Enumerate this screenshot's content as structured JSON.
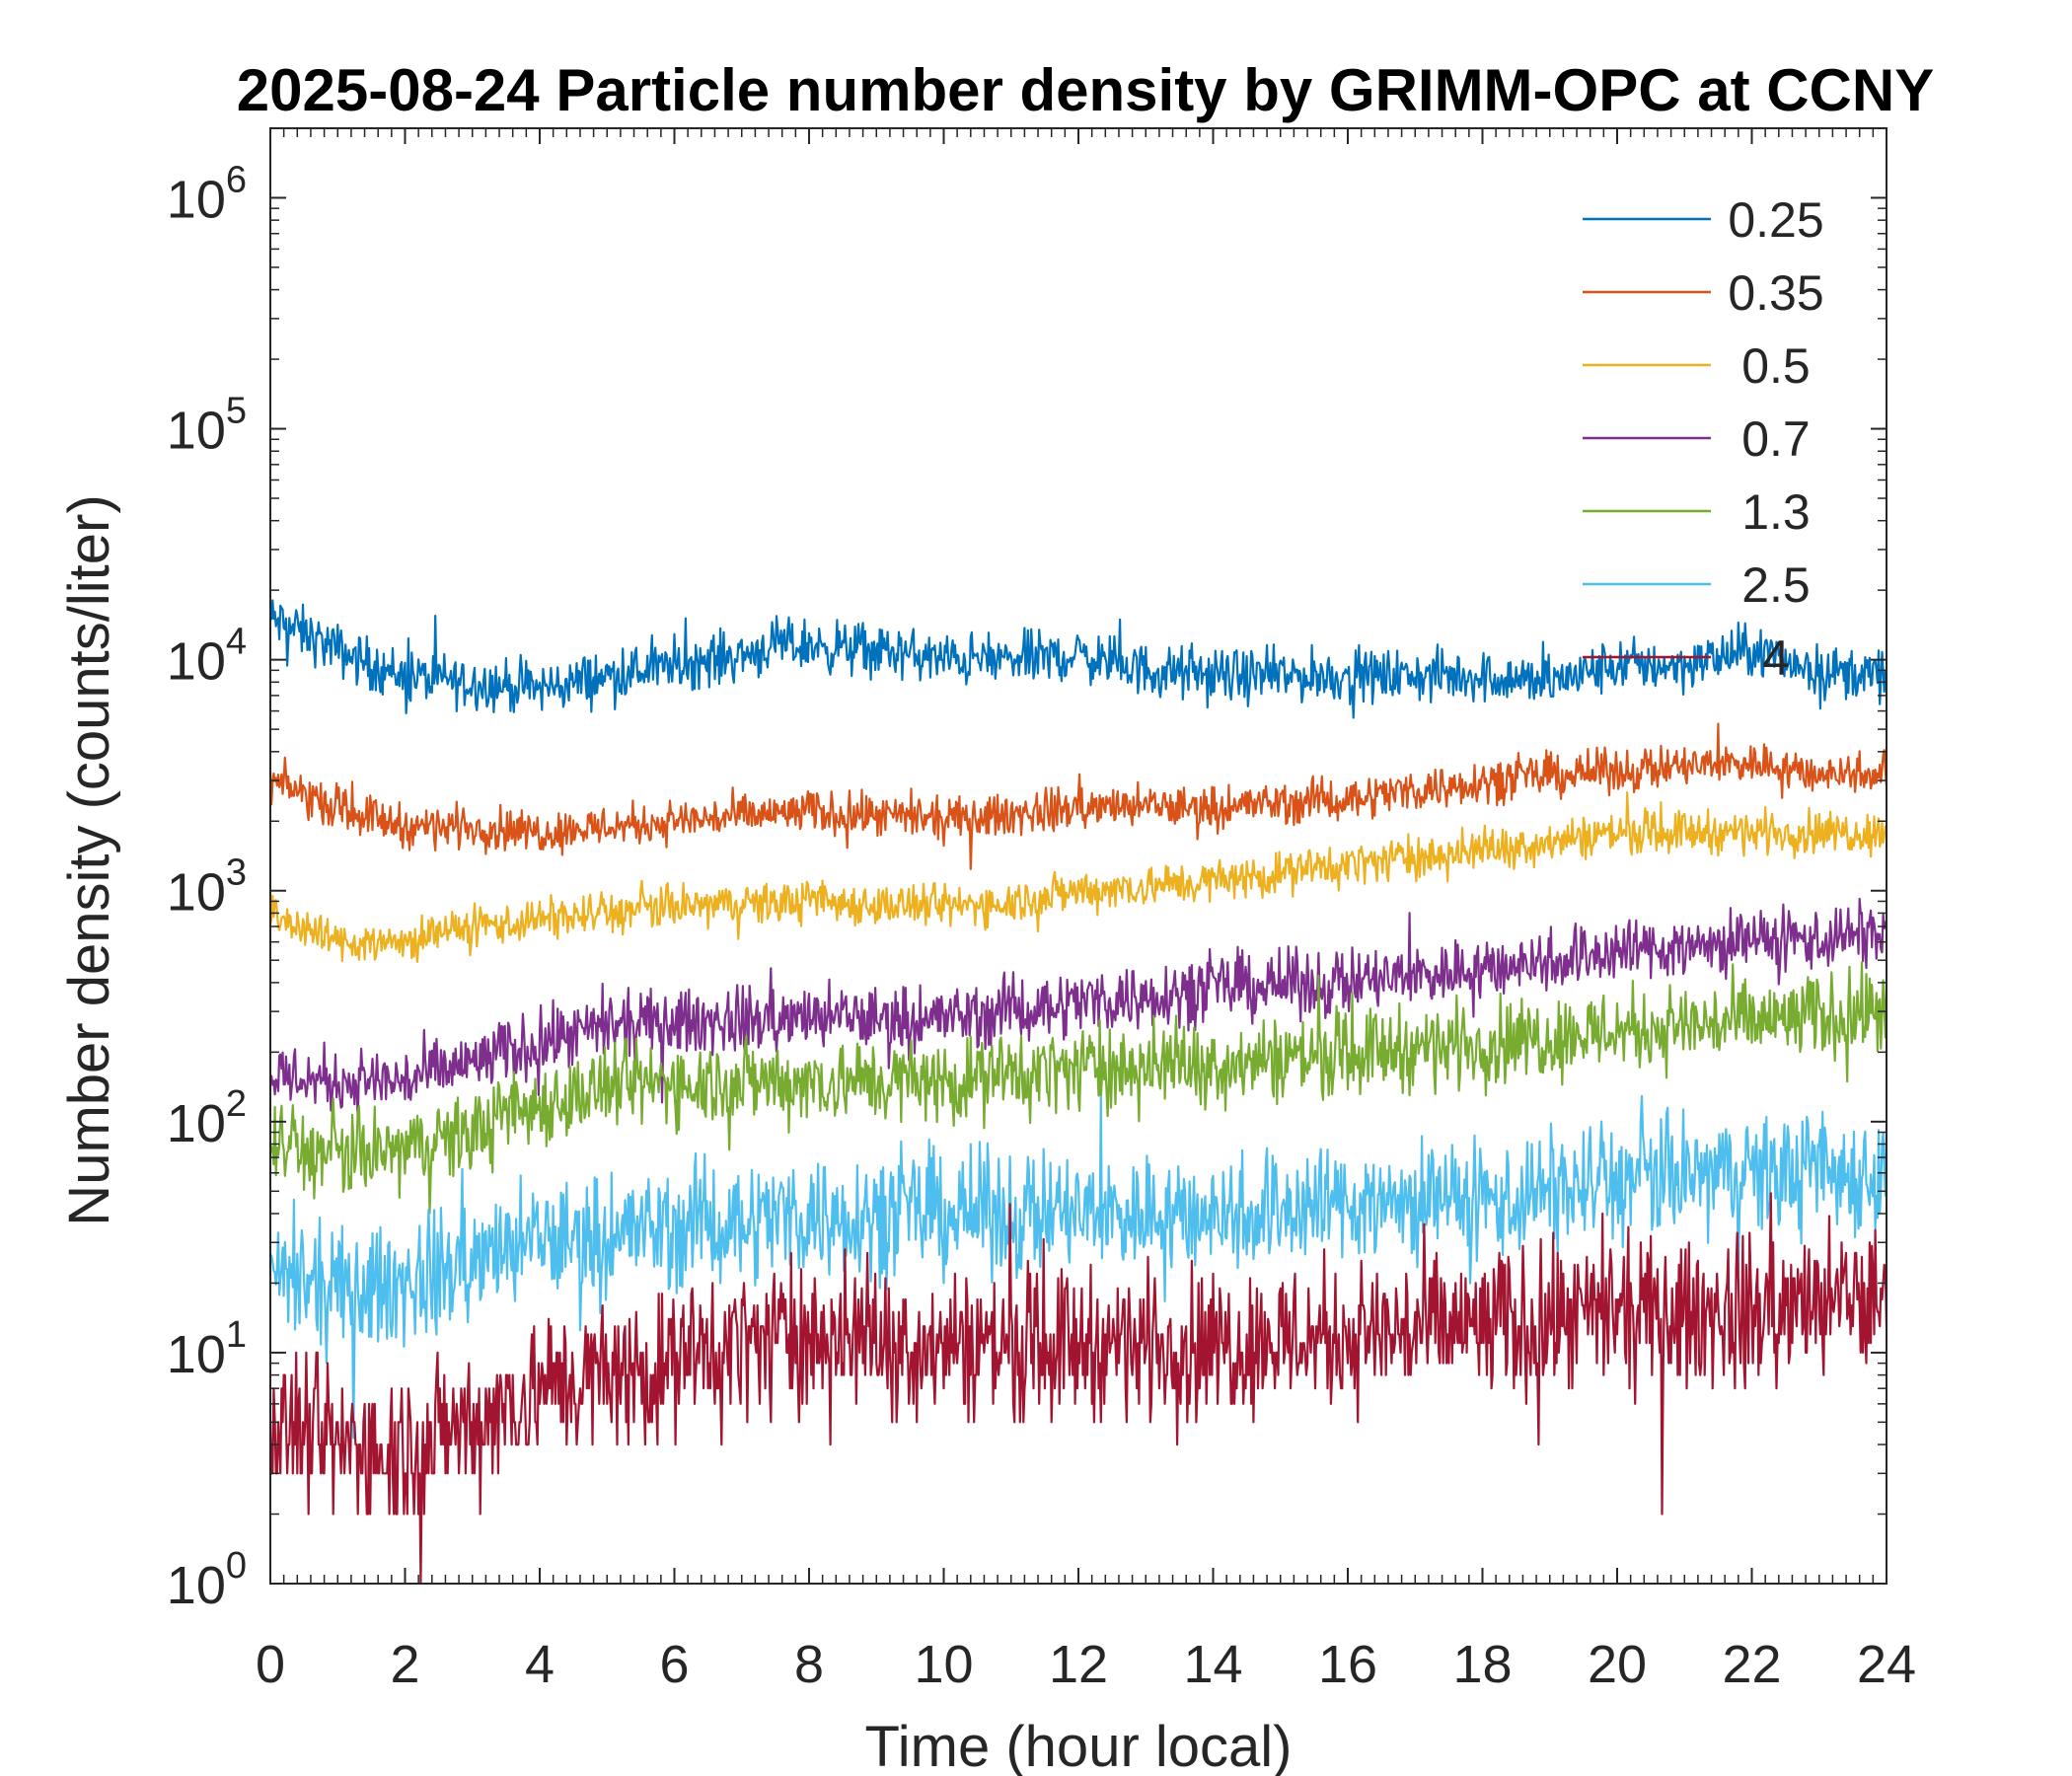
{
  "chart_data": {
    "type": "line",
    "title": "2025-08-24 Particle number density by GRIMM-OPC at CCNY",
    "xlabel": "Time (hour local)",
    "ylabel": "Number density (counts/liter)",
    "xlim": [
      0,
      24
    ],
    "ylim": [
      1,
      2000000
    ],
    "yscale": "log",
    "x_ticks": [
      "0",
      "2",
      "4",
      "6",
      "8",
      "10",
      "12",
      "14",
      "16",
      "18",
      "20",
      "22",
      "24"
    ],
    "y_tick_exponents": [
      "0",
      "1",
      "2",
      "3",
      "4",
      "5",
      "6"
    ],
    "y_tick_base": "10",
    "legend_position": "top-right",
    "series": [
      {
        "name": "0.25",
        "color": "#0072BD",
        "noise": 0.055,
        "x": [
          0,
          0.5,
          1,
          1.5,
          2,
          3,
          4,
          5,
          6,
          7,
          7.5,
          8,
          9,
          10,
          11,
          12,
          13,
          14,
          15,
          16,
          17,
          18,
          19,
          20,
          21,
          22,
          23,
          24
        ],
        "values": [
          15000,
          13000,
          11000,
          9500,
          8500,
          8000,
          7500,
          8500,
          9500,
          10500,
          11500,
          11500,
          11000,
          10000,
          10000,
          10500,
          9000,
          8500,
          8500,
          8500,
          8500,
          8500,
          8000,
          9500,
          9500,
          11000,
          9000,
          8500
        ]
      },
      {
        "name": "0.35",
        "color": "#D95319",
        "noise": 0.045,
        "x": [
          0,
          1,
          2,
          3,
          4,
          6,
          8,
          10,
          12,
          14,
          16,
          18,
          20,
          22,
          23,
          24
        ],
        "values": [
          3000,
          2300,
          1900,
          1900,
          1800,
          2000,
          2200,
          2000,
          2300,
          2300,
          2500,
          3000,
          3300,
          3600,
          3200,
          3300
        ]
      },
      {
        "name": "0.5",
        "color": "#EDB120",
        "noise": 0.045,
        "x": [
          0,
          1,
          2,
          3,
          4,
          6,
          8,
          10,
          11,
          12,
          14,
          16,
          18,
          20,
          22,
          24
        ],
        "values": [
          800,
          600,
          600,
          700,
          750,
          850,
          900,
          850,
          900,
          1000,
          1100,
          1300,
          1500,
          1800,
          1800,
          1800
        ]
      },
      {
        "name": "0.7",
        "color": "#7E2F8E",
        "noise": 0.07,
        "x": [
          0,
          1,
          2,
          3,
          4,
          5,
          6,
          8,
          10,
          12,
          14,
          16,
          18,
          20,
          22,
          24
        ],
        "values": [
          160,
          150,
          150,
          180,
          220,
          250,
          270,
          280,
          280,
          330,
          380,
          400,
          460,
          550,
          600,
          650
        ]
      },
      {
        "name": "1.3",
        "color": "#77AC30",
        "noise": 0.09,
        "x": [
          0,
          1,
          2,
          3,
          4,
          5,
          6,
          8,
          10,
          12,
          14,
          16,
          18,
          20,
          22,
          24
        ],
        "values": [
          80,
          70,
          75,
          90,
          120,
          140,
          150,
          150,
          150,
          170,
          180,
          200,
          220,
          250,
          270,
          300
        ]
      },
      {
        "name": "2.5",
        "color": "#4DBEEE",
        "noise": 0.13,
        "x": [
          0,
          1,
          2,
          3,
          4,
          6,
          8,
          10,
          12,
          14,
          16,
          18,
          20,
          22,
          24
        ],
        "values": [
          20,
          18,
          20,
          25,
          30,
          35,
          40,
          40,
          40,
          40,
          45,
          45,
          55,
          60,
          60
        ]
      },
      {
        "name": "4",
        "color": "#A2142F",
        "noise": 0.16,
        "x": [
          0,
          1,
          2,
          3,
          4,
          5,
          6,
          7,
          8,
          10,
          12,
          14,
          16,
          18,
          20,
          22,
          24
        ],
        "values": [
          5,
          4,
          4,
          5,
          7,
          8,
          9,
          11,
          12,
          11,
          11,
          11,
          12,
          13,
          14,
          15,
          17
        ]
      }
    ]
  }
}
